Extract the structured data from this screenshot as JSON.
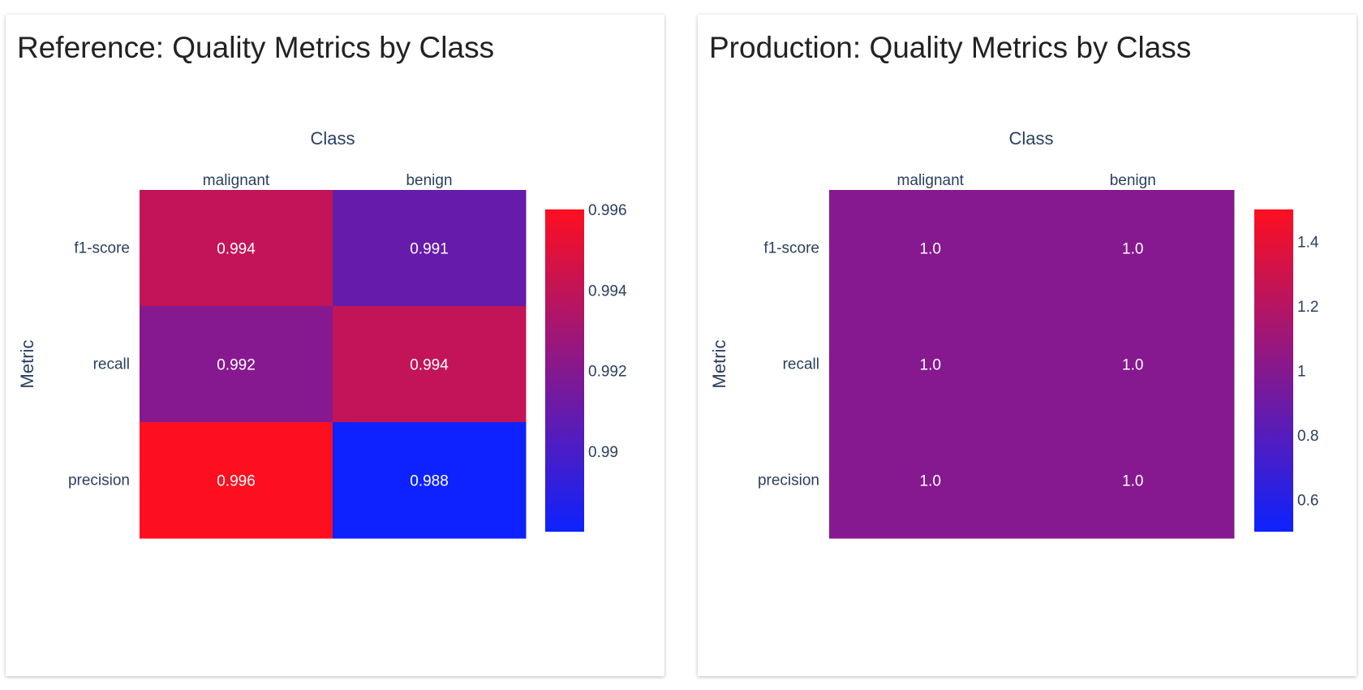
{
  "panels": [
    {
      "title": "Reference: Quality Metrics by Class"
    },
    {
      "title": "Production: Quality Metrics by Class"
    }
  ],
  "colors": {
    "low": "#0d22fe",
    "mid": "#7f0f7f",
    "high": "#fe0f1f",
    "axis_text": "#2a3f5f",
    "cell_text": "#ffffff"
  },
  "chart_data": [
    {
      "type": "heatmap",
      "title": "Reference: Quality Metrics by Class",
      "xlabel": "Class",
      "ylabel": "Metric",
      "x_categories": [
        "malignant",
        "benign"
      ],
      "y_categories": [
        "f1-score",
        "recall",
        "precision"
      ],
      "values": [
        [
          0.994,
          0.991
        ],
        [
          0.992,
          0.994
        ],
        [
          0.996,
          0.988
        ]
      ],
      "value_labels": [
        [
          "0.994",
          "0.991"
        ],
        [
          "0.992",
          "0.994"
        ],
        [
          "0.996",
          "0.988"
        ]
      ],
      "zlim": [
        0.988,
        0.996
      ],
      "colorbar_ticks": [
        0.99,
        0.992,
        0.994,
        0.996
      ],
      "colorbar_tick_labels": [
        "0.99",
        "0.992",
        "0.994",
        "0.996"
      ],
      "colorscale": [
        "#0d22fe",
        "#fe0f1f"
      ]
    },
    {
      "type": "heatmap",
      "title": "Production: Quality Metrics by Class",
      "xlabel": "Class",
      "ylabel": "Metric",
      "x_categories": [
        "malignant",
        "benign"
      ],
      "y_categories": [
        "f1-score",
        "recall",
        "precision"
      ],
      "values": [
        [
          1.0,
          1.0
        ],
        [
          1.0,
          1.0
        ],
        [
          1.0,
          1.0
        ]
      ],
      "value_labels": [
        [
          "1.0",
          "1.0"
        ],
        [
          "1.0",
          "1.0"
        ],
        [
          "1.0",
          "1.0"
        ]
      ],
      "zlim": [
        0.5,
        1.5
      ],
      "colorbar_ticks": [
        0.6,
        0.8,
        1.0,
        1.2,
        1.4
      ],
      "colorbar_tick_labels": [
        "0.6",
        "0.8",
        "1",
        "1.2",
        "1.4"
      ],
      "colorscale": [
        "#0d22fe",
        "#fe0f1f"
      ]
    }
  ]
}
